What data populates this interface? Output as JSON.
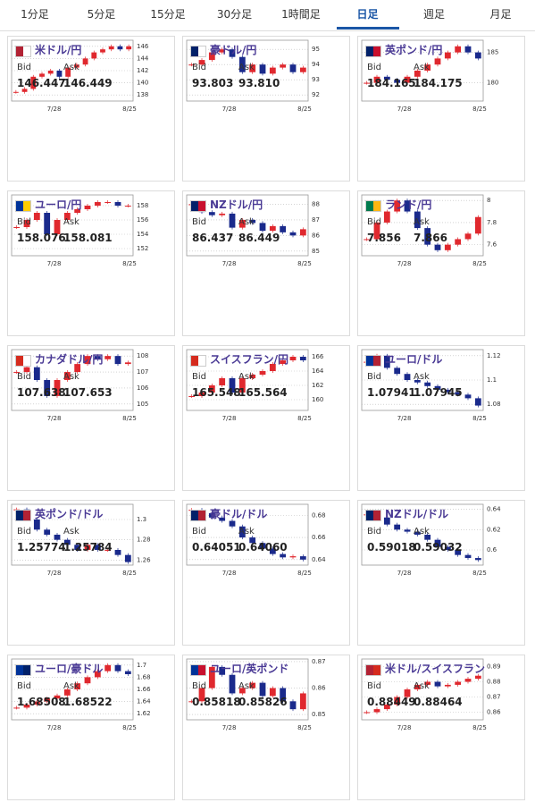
{
  "tabs": [
    "1分足",
    "5分足",
    "15分足",
    "30分足",
    "1時間足",
    "日足",
    "週足",
    "月足"
  ],
  "active_tab": 5,
  "labels": {
    "bid": "Bid",
    "ask": "Ask"
  },
  "cards": [
    {
      "name": "米ドル/円",
      "bid": "146.447",
      "ask": "146.449",
      "chart": {
        "type": "candlestick",
        "x_labels": [
          "7/28",
          "8/25"
        ],
        "ylim": [
          137,
          147
        ],
        "yticks": [
          138,
          140,
          142,
          144,
          146
        ],
        "values": [
          138.5,
          139,
          141,
          141.5,
          142,
          141,
          142.5,
          143,
          144,
          145,
          145.5,
          146,
          145.5,
          146
        ]
      }
    },
    {
      "name": "豪ドル/円",
      "bid": "93.803",
      "ask": "93.810",
      "chart": {
        "type": "candlestick",
        "x_labels": [
          "7/28",
          "8/25"
        ],
        "ylim": [
          91.6,
          95.6
        ],
        "yticks": [
          92,
          93,
          94,
          95
        ],
        "values": [
          94,
          94.3,
          94.8,
          95,
          94.5,
          93.5,
          94,
          93.4,
          93.8,
          94,
          93.5,
          93.8
        ]
      }
    },
    {
      "name": "英ポンド/円",
      "bid": "184.165",
      "ask": "184.175",
      "chart": {
        "type": "candlestick",
        "x_labels": [
          "7/28",
          "8/25"
        ],
        "ylim": [
          177,
          187
        ],
        "yticks": [
          180,
          185
        ],
        "values": [
          180,
          181,
          180.5,
          180,
          181,
          182,
          183,
          184,
          185,
          186,
          185,
          184
        ]
      }
    },
    {
      "name": "ユーロ/円",
      "bid": "158.076",
      "ask": "158.081",
      "chart": {
        "type": "candlestick",
        "x_labels": [
          "7/28",
          "8/25"
        ],
        "ylim": [
          151,
          159.5
        ],
        "yticks": [
          152,
          154,
          156,
          158
        ],
        "values": [
          155,
          156,
          157,
          154,
          156,
          157,
          157.5,
          158,
          158.5,
          158.5,
          158,
          158
        ]
      }
    },
    {
      "name": "NZドル/円",
      "bid": "86.437",
      "ask": "86.449",
      "chart": {
        "type": "candlestick",
        "x_labels": [
          "7/28",
          "8/25"
        ],
        "ylim": [
          84.7,
          88.6
        ],
        "yticks": [
          85,
          86,
          87,
          88
        ],
        "values": [
          88,
          87.5,
          87.3,
          87.4,
          86.5,
          87,
          86.8,
          86.3,
          86.6,
          86.2,
          86,
          86.4
        ]
      }
    },
    {
      "name": "ランド/円",
      "bid": "7.856",
      "ask": "7.866",
      "chart": {
        "type": "candlestick",
        "x_labels": [
          "7/28",
          "8/25"
        ],
        "ylim": [
          7.5,
          8.05
        ],
        "yticks": [
          7.6,
          7.8,
          8
        ],
        "values": [
          7.65,
          7.8,
          7.9,
          8,
          7.9,
          7.75,
          7.6,
          7.55,
          7.6,
          7.65,
          7.7,
          7.85
        ]
      }
    },
    {
      "name": "カナダドル/円",
      "bid": "107.638",
      "ask": "107.653",
      "chart": {
        "type": "candlestick",
        "x_labels": [
          "7/28",
          "8/25"
        ],
        "ylim": [
          104.6,
          108.4
        ],
        "yticks": [
          105,
          106,
          107,
          108
        ],
        "values": [
          107,
          107.3,
          106.5,
          105.5,
          106.5,
          107,
          107.5,
          108,
          107.8,
          108,
          107.5,
          107.6
        ]
      }
    },
    {
      "name": "スイスフラン/円",
      "bid": "165.548",
      "ask": "165.564",
      "chart": {
        "type": "candlestick",
        "x_labels": [
          "7/28",
          "8/25"
        ],
        "ylim": [
          158.5,
          167
        ],
        "yticks": [
          160,
          162,
          164,
          166
        ],
        "values": [
          160.5,
          161,
          162,
          163,
          161,
          163,
          163.5,
          164,
          165,
          165.5,
          166,
          165.5
        ]
      }
    },
    {
      "name": "ユーロ/ドル",
      "bid": "1.07941",
      "ask": "1.07945",
      "chart": {
        "type": "candlestick",
        "x_labels": [
          "7/28",
          "8/25"
        ],
        "ylim": [
          1.075,
          1.125
        ],
        "yticks": [
          1.08,
          1.1,
          1.12
        ],
        "values": [
          1.115,
          1.12,
          1.11,
          1.105,
          1.1,
          1.098,
          1.095,
          1.092,
          1.09,
          1.088,
          1.085,
          1.079
        ]
      }
    },
    {
      "name": "英ポンド/ドル",
      "bid": "1.25774",
      "ask": "1.25784",
      "chart": {
        "type": "candlestick",
        "x_labels": [
          "7/28",
          "8/25"
        ],
        "ylim": [
          1.255,
          1.315
        ],
        "yticks": [
          1.26,
          1.28,
          1.3
        ],
        "values": [
          1.31,
          1.3,
          1.29,
          1.285,
          1.28,
          1.275,
          1.27,
          1.275,
          1.27,
          1.27,
          1.265,
          1.258
        ]
      }
    },
    {
      "name": "豪ドル/ドル",
      "bid": "0.64051",
      "ask": "0.64060",
      "chart": {
        "type": "candlestick",
        "x_labels": [
          "7/28",
          "8/25"
        ],
        "ylim": [
          0.635,
          0.69
        ],
        "yticks": [
          0.64,
          0.66,
          0.68
        ],
        "values": [
          0.685,
          0.682,
          0.678,
          0.675,
          0.67,
          0.66,
          0.655,
          0.65,
          0.645,
          0.642,
          0.643,
          0.64
        ]
      }
    },
    {
      "name": "NZドル/ドル",
      "bid": "0.59018",
      "ask": "0.59032",
      "chart": {
        "type": "candlestick",
        "x_labels": [
          "7/28",
          "8/25"
        ],
        "ylim": [
          0.585,
          0.645
        ],
        "yticks": [
          0.6,
          0.62,
          0.64
        ],
        "values": [
          0.635,
          0.632,
          0.625,
          0.62,
          0.618,
          0.615,
          0.61,
          0.603,
          0.6,
          0.595,
          0.592,
          0.59
        ]
      }
    },
    {
      "name": "ユーロ/豪ドル",
      "bid": "1.68508",
      "ask": "1.68522",
      "chart": {
        "type": "candlestick",
        "x_labels": [
          "7/28",
          "8/25"
        ],
        "ylim": [
          1.61,
          1.71
        ],
        "yticks": [
          1.62,
          1.64,
          1.66,
          1.68,
          1.7
        ],
        "values": [
          1.63,
          1.635,
          1.64,
          1.645,
          1.65,
          1.66,
          1.67,
          1.68,
          1.69,
          1.7,
          1.69,
          1.685
        ]
      }
    },
    {
      "name": "ユーロ/英ポンド",
      "bid": "0.85818",
      "ask": "0.85826",
      "chart": {
        "type": "candlestick",
        "x_labels": [
          "7/28",
          "8/25"
        ],
        "ylim": [
          0.848,
          0.871
        ],
        "yticks": [
          0.85,
          0.86,
          0.87
        ],
        "values": [
          0.855,
          0.86,
          0.868,
          0.865,
          0.858,
          0.86,
          0.862,
          0.857,
          0.86,
          0.855,
          0.852,
          0.858
        ]
      }
    },
    {
      "name": "米ドル/スイスフラン",
      "bid": "0.88449",
      "ask": "0.88464",
      "chart": {
        "type": "candlestick",
        "x_labels": [
          "7/28",
          "8/25"
        ],
        "ylim": [
          0.855,
          0.895
        ],
        "yticks": [
          0.86,
          0.87,
          0.88,
          0.89
        ],
        "values": [
          0.86,
          0.862,
          0.865,
          0.87,
          0.875,
          0.878,
          0.88,
          0.877,
          0.878,
          0.88,
          0.882,
          0.884
        ]
      }
    }
  ]
}
